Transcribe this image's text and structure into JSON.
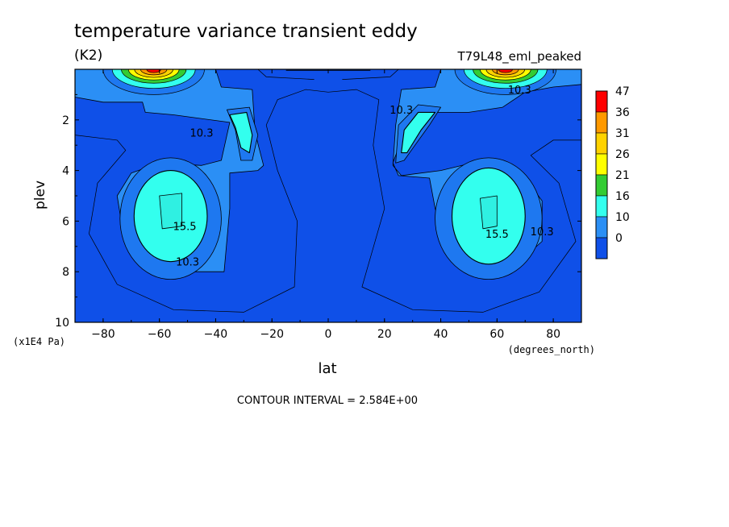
{
  "chart_data": {
    "type": "heatmap",
    "title": "temperature variance transient eddy",
    "units": "(K2)",
    "run_label": "T79L48_eml_peaked",
    "xlabel": "lat",
    "x_units": "(degrees_north)",
    "ylabel": "plev",
    "y_units": "(x1E4 Pa)",
    "xlim": [
      -90,
      90
    ],
    "ylim": [
      0,
      10
    ],
    "y_inverted": true,
    "x_ticks": [
      -80,
      -60,
      -40,
      -20,
      0,
      20,
      40,
      60,
      80
    ],
    "y_ticks": [
      2,
      4,
      6,
      8,
      10
    ],
    "contour_interval_text": "CONTOUR INTERVAL = 2.584E+00",
    "contour_labels": [
      {
        "text": "10.3",
        "lat": -45,
        "plev": 2.5
      },
      {
        "text": "15.5",
        "lat": -51,
        "plev": 6.2
      },
      {
        "text": "10.3",
        "lat": -50,
        "plev": 7.6
      },
      {
        "text": "10.3",
        "lat": 26,
        "plev": 1.6
      },
      {
        "text": "10.3",
        "lat": 68,
        "plev": 0.8
      },
      {
        "text": "15.5",
        "lat": 60,
        "plev": 6.5
      },
      {
        "text": "10.3",
        "lat": 76,
        "plev": 6.4
      }
    ],
    "legend": {
      "levels": [
        "47",
        "36",
        "31",
        "26",
        "21",
        "16",
        "10",
        "0"
      ],
      "colors": [
        "#ff0000",
        "#ff9900",
        "#ffd200",
        "#ffff00",
        "#33cc33",
        "#33ffee",
        "#2b8ff5",
        "#0f50e8"
      ]
    },
    "background_color": "#0f50e8",
    "fields": [
      {
        "region": "SH lower-mid maximum",
        "lat_center": -55,
        "plev_center": 5.8,
        "peak_value": 16
      },
      {
        "region": "NH lower-mid maximum",
        "lat_center": 57,
        "plev_center": 5.8,
        "peak_value": 16
      },
      {
        "region": "SH upper-level maximum",
        "lat_center": -30,
        "plev_center": 2.5,
        "peak_value": 16
      },
      {
        "region": "NH upper-level maximum",
        "lat_center": 30,
        "plev_center": 2.3,
        "peak_value": 16
      },
      {
        "region": "SH top high-latitude maximum",
        "lat_center": -60,
        "plev_center": 0.1,
        "peak_value": 36
      },
      {
        "region": "NH top high-latitude maximum",
        "lat_center": 62,
        "plev_center": 0.1,
        "peak_value": 36
      }
    ]
  }
}
